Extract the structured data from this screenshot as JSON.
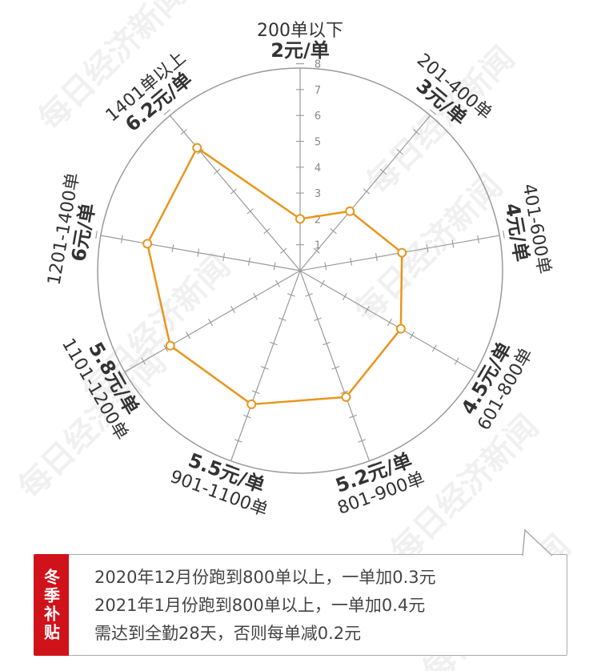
{
  "chart_data": {
    "type": "radar",
    "scale_max": 8,
    "tick_labels": [
      "1",
      "2",
      "3",
      "4",
      "5",
      "6",
      "7",
      "8"
    ],
    "categories": [
      {
        "range": "200单以下",
        "price": "2元/单"
      },
      {
        "range": "201-400单",
        "price": "3元/单"
      },
      {
        "range": "401-600单",
        "price": "4元/单"
      },
      {
        "range": "601-800单",
        "price": "4.5元/单"
      },
      {
        "range": "801-900单",
        "price": "5.2元/单"
      },
      {
        "range": "901-1100单",
        "price": "5.5元/单"
      },
      {
        "range": "1101-1200单",
        "price": "5.8元/单"
      },
      {
        "range": "1201-1400单",
        "price": "6元/单"
      },
      {
        "range": "1401单以上",
        "price": "6.2元/单"
      }
    ],
    "values": [
      2,
      3,
      4,
      4.5,
      5.2,
      5.5,
      5.8,
      6,
      6.2
    ],
    "series_color": "#e8961e",
    "grid": true
  },
  "note": {
    "tag": "冬季补贴",
    "lines": [
      "2020年12月份跑到800单以上，一单加0.3元",
      "2021年1月份跑到800单以上，一单加0.4元",
      "需达到全勤28天，否则每单减0.2元"
    ],
    "tag_color": "#d0121b"
  },
  "watermark": "每日经济新闻"
}
